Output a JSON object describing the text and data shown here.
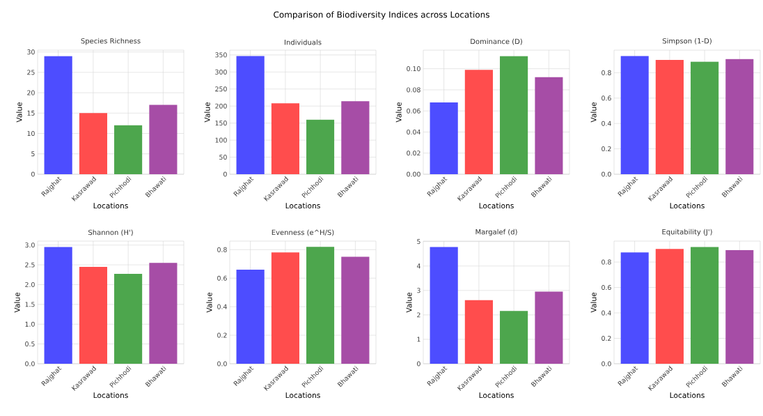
{
  "chart_data": [
    {
      "type": "other",
      "title": "Comparison of Biodiversity Indices across Locations"
    },
    {
      "type": "bar",
      "title": "Species Richness",
      "xlabel": "Locations",
      "ylabel": "Value",
      "categories": [
        "Rajghat",
        "Kasrawad",
        "Pichhodi",
        "Bhawati"
      ],
      "values": [
        29,
        15,
        12,
        17
      ],
      "colors": [
        "#4d4dff",
        "#ff4d4d",
        "#4da64d",
        "#a64da6"
      ],
      "ylim": [
        0,
        30.45
      ],
      "yticks": [
        0,
        5,
        10,
        15,
        20,
        25,
        30
      ],
      "grid": true
    },
    {
      "type": "bar",
      "title": "Individuals",
      "xlabel": "Locations",
      "ylabel": "Value",
      "categories": [
        "Rajghat",
        "Kasrawad",
        "Pichhodi",
        "Bhawati"
      ],
      "values": [
        347,
        208,
        160,
        214
      ],
      "colors": [
        "#4d4dff",
        "#ff4d4d",
        "#4da64d",
        "#a64da6"
      ],
      "ylim": [
        0,
        364
      ],
      "yticks": [
        0,
        50,
        100,
        150,
        200,
        250,
        300,
        350
      ],
      "grid": true
    },
    {
      "type": "bar",
      "title": "Dominance (D)",
      "xlabel": "Locations",
      "ylabel": "Value",
      "categories": [
        "Rajghat",
        "Kasrawad",
        "Pichhodi",
        "Bhawati"
      ],
      "values": [
        0.068,
        0.099,
        0.112,
        0.092
      ],
      "colors": [
        "#4d4dff",
        "#ff4d4d",
        "#4da64d",
        "#a64da6"
      ],
      "ylim": [
        0,
        0.1176
      ],
      "yticks": [
        {
          "value": 0,
          "label": "0.00"
        },
        {
          "value": 0.02,
          "label": "0.02"
        },
        {
          "value": 0.04,
          "label": "0.04"
        },
        {
          "value": 0.06,
          "label": "0.06"
        },
        {
          "value": 0.08,
          "label": "0.08"
        },
        {
          "value": 0.1,
          "label": "0.10"
        }
      ],
      "grid": true
    },
    {
      "type": "bar",
      "title": "Simpson (1-D)",
      "xlabel": "Locations",
      "ylabel": "Value",
      "categories": [
        "Rajghat",
        "Kasrawad",
        "Pichhodi",
        "Bhawati"
      ],
      "values": [
        0.932,
        0.901,
        0.888,
        0.908
      ],
      "colors": [
        "#4d4dff",
        "#ff4d4d",
        "#4da64d",
        "#a64da6"
      ],
      "ylim": [
        0,
        0.978
      ],
      "yticks": [
        {
          "value": 0,
          "label": "0.0"
        },
        0.2,
        0.4,
        0.6,
        0.8
      ],
      "grid": true
    },
    {
      "type": "bar",
      "title": "Shannon (H')",
      "xlabel": "Locations",
      "ylabel": "Value",
      "categories": [
        "Rajghat",
        "Kasrawad",
        "Pichhodi",
        "Bhawati"
      ],
      "values": [
        2.95,
        2.45,
        2.27,
        2.55
      ],
      "colors": [
        "#4d4dff",
        "#ff4d4d",
        "#4da64d",
        "#a64da6"
      ],
      "ylim": [
        0,
        3.1
      ],
      "yticks": [
        {
          "value": 0,
          "label": "0.0"
        },
        0.5,
        {
          "value": 1,
          "label": "1.0"
        },
        1.5,
        {
          "value": 2,
          "label": "2.0"
        },
        2.5,
        {
          "value": 3,
          "label": "3.0"
        }
      ],
      "grid": true
    },
    {
      "type": "bar",
      "title": "Evenness (e^H/S)",
      "xlabel": "Locations",
      "ylabel": "Value",
      "categories": [
        "Rajghat",
        "Kasrawad",
        "Pichhodi",
        "Bhawati"
      ],
      "values": [
        0.66,
        0.78,
        0.82,
        0.75
      ],
      "colors": [
        "#4d4dff",
        "#ff4d4d",
        "#4da64d",
        "#a64da6"
      ],
      "ylim": [
        0,
        0.86
      ],
      "yticks": [
        {
          "value": 0,
          "label": "0.0"
        },
        0.2,
        0.4,
        0.6,
        0.8
      ],
      "grid": true
    },
    {
      "type": "bar",
      "title": "Margalef (d)",
      "xlabel": "Locations",
      "ylabel": "Value",
      "categories": [
        "Rajghat",
        "Kasrawad",
        "Pichhodi",
        "Bhawati"
      ],
      "values": [
        4.78,
        2.6,
        2.16,
        2.95
      ],
      "colors": [
        "#4d4dff",
        "#ff4d4d",
        "#4da64d",
        "#a64da6"
      ],
      "ylim": [
        0,
        5.02
      ],
      "yticks": [
        0,
        1,
        2,
        3,
        4,
        5
      ],
      "grid": true
    },
    {
      "type": "bar",
      "title": "Equitability (J')",
      "xlabel": "Locations",
      "ylabel": "Value",
      "categories": [
        "Rajghat",
        "Kasrawad",
        "Pichhodi",
        "Bhawati"
      ],
      "values": [
        0.876,
        0.903,
        0.918,
        0.895
      ],
      "colors": [
        "#4d4dff",
        "#ff4d4d",
        "#4da64d",
        "#a64da6"
      ],
      "ylim": [
        0,
        0.965
      ],
      "yticks": [
        {
          "value": 0,
          "label": "0.0"
        },
        0.2,
        0.4,
        0.6,
        0.8
      ],
      "grid": true
    }
  ]
}
